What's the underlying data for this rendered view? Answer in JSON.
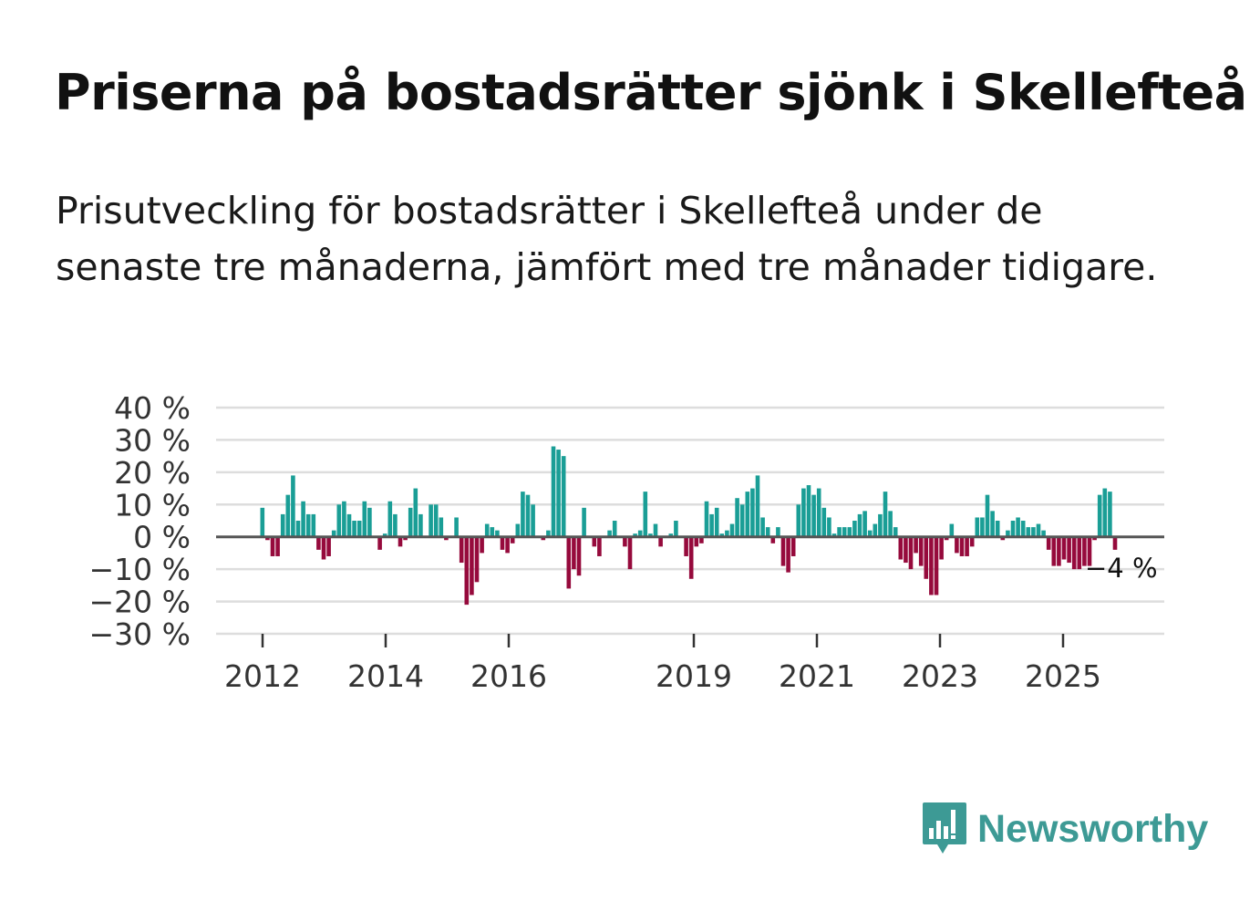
{
  "header": {
    "title": "Priserna på bostadsrätter sjönk i Skellefteå",
    "subtitle": "Prisutveckling för bostadsrätter i Skellefteå under de senaste tre månaderna, jämfört med tre månader tidigare."
  },
  "brand": {
    "name": "Newsworthy",
    "icon": "newsworthy-logo-icon",
    "color": "#3d9a95"
  },
  "chart_data": {
    "type": "bar",
    "title": "Priserna på bostadsrätter sjönk i Skellefteå",
    "xlabel": "",
    "ylabel": "",
    "unit": "%",
    "ylim": [
      -30,
      40
    ],
    "yticks": [
      40,
      30,
      20,
      10,
      0,
      -10,
      -20,
      -30
    ],
    "ytick_labels": [
      "40 %",
      "30 %",
      "20 %",
      "10 %",
      "0 %",
      "−10 %",
      "−20 %",
      "−30 %"
    ],
    "xticks": [
      "2012",
      "2014",
      "2016",
      "2019",
      "2021",
      "2023",
      "2025"
    ],
    "grid": true,
    "colors": {
      "positive": "#1a9e96",
      "negative": "#960a3c",
      "zero_line": "#555555",
      "grid": "#dddddd"
    },
    "annotation": {
      "label": "−4 %",
      "value": -4
    },
    "period": "monthly, Jan 2012 – Jan 2026 (every 4th month approximately)",
    "values": [
      9,
      -1,
      -6,
      -6,
      7,
      13,
      19,
      5,
      11,
      7,
      7,
      -4,
      -7,
      -6,
      2,
      10,
      11,
      7,
      5,
      5,
      11,
      9,
      0,
      -4,
      1,
      11,
      7,
      -3,
      -1,
      9,
      15,
      7,
      0,
      10,
      10,
      6,
      -1,
      0,
      6,
      -8,
      -21,
      -18,
      -14,
      -5,
      4,
      3,
      2,
      -4,
      -5,
      -2,
      4,
      14,
      13,
      10,
      0,
      -1,
      2,
      28,
      27,
      25,
      -16,
      -10,
      -12,
      9,
      0,
      -3,
      -6,
      0,
      2,
      5,
      0,
      -3,
      -10,
      1,
      2,
      14,
      1,
      4,
      -3,
      0,
      1,
      5,
      0,
      -6,
      -13,
      -3,
      -2,
      11,
      7,
      9,
      1,
      2,
      4,
      12,
      10,
      14,
      15,
      19,
      6,
      3,
      -2,
      3,
      -9,
      -11,
      -6,
      10,
      15,
      16,
      13,
      15,
      9,
      6,
      1,
      3,
      3,
      3,
      5,
      7,
      8,
      2,
      4,
      7,
      14,
      8,
      3,
      -7,
      -8,
      -10,
      -5,
      -9,
      -13,
      -18,
      -18,
      -7,
      -1,
      4,
      -5,
      -6,
      -6,
      -3,
      6,
      6,
      13,
      8,
      5,
      -1,
      2,
      5,
      6,
      5,
      3,
      3,
      4,
      2,
      -4,
      -9,
      -9,
      -7,
      -8,
      -10,
      -10,
      -9,
      -9,
      -1,
      13,
      15,
      14,
      -4
    ]
  }
}
